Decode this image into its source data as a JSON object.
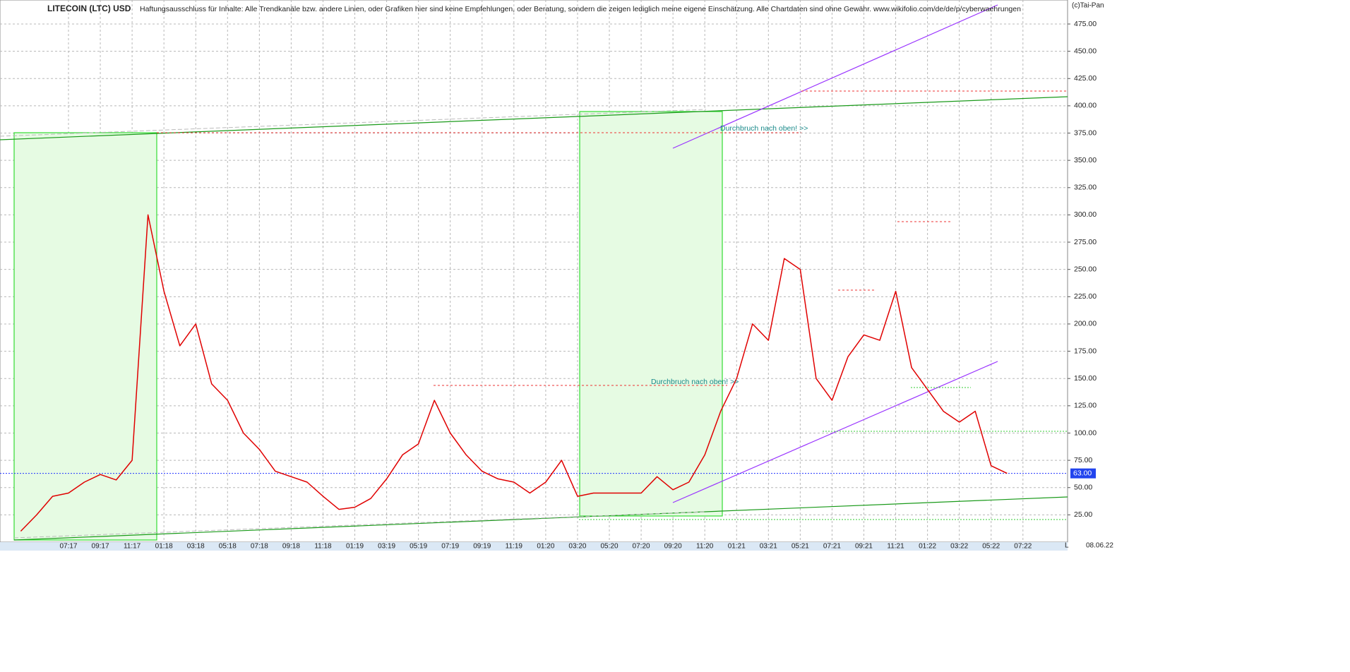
{
  "chart_data": {
    "type": "line",
    "title": "LITECOIN (LTC) USD",
    "subtitle": "Haftungsausschluss für Inhalte: Alle Trendkanäle bzw. andere Linien, oder Grafiken hier sind keine Empfehlungen, oder Beratung, sondern die zeigen lediglich meine eigene Einschätzung. Alle Chartdaten sind ohne Gewähr.  www.wikifolio.com/de/de/p/cyberwaehrungen",
    "copyright": "(c)Tai-Pan",
    "date_label": "08.06.22",
    "corner_label": "L",
    "annotations": [
      "Durchbruch nach oben! >>",
      "Durchbruch nach oben! >>"
    ],
    "current": {
      "value": 63,
      "label": "63.00"
    },
    "categories": [
      null,
      null,
      null,
      "07:17",
      null,
      "09:17",
      null,
      "11:17",
      null,
      "01:18",
      null,
      "03:18",
      null,
      "05:18",
      null,
      "07:18",
      null,
      "09:18",
      null,
      "11:18",
      null,
      "01:19",
      null,
      "03:19",
      null,
      "05:19",
      null,
      "07:19",
      null,
      "09:19",
      null,
      "11:19",
      null,
      "01:20",
      null,
      "03:20",
      null,
      "05:20",
      null,
      "07:20",
      null,
      "09:20",
      null,
      "11:20",
      null,
      "01:21",
      null,
      "03:21",
      null,
      "05:21",
      null,
      "07:21",
      null,
      "09:21",
      null,
      "11:21",
      null,
      "01:22",
      null,
      "03:22",
      null,
      "05:22",
      null,
      "07:22"
    ],
    "series": [
      {
        "color": "#e00000",
        "values": [
          10,
          25,
          42,
          45,
          55,
          62,
          57,
          75,
          300,
          230,
          180,
          200,
          145,
          130,
          100,
          85,
          65,
          60,
          55,
          42,
          30,
          32,
          40,
          58,
          80,
          90,
          130,
          100,
          80,
          65,
          58,
          55,
          45,
          55,
          75,
          42,
          45,
          45,
          45,
          45,
          60,
          48,
          55,
          80,
          120,
          150,
          200,
          185,
          260,
          250,
          150,
          130,
          170,
          190,
          185,
          230,
          160,
          140,
          120,
          110,
          120,
          70,
          63,
          null
        ]
      }
    ],
    "ylim": [
      0,
      497
    ],
    "yticks": [
      {
        "value": 25,
        "label": "25.00"
      },
      {
        "value": 50,
        "label": "50.00"
      },
      {
        "value": 75,
        "label": "75.00"
      },
      {
        "value": 100,
        "label": "100.00"
      },
      {
        "value": 125,
        "label": "125.00"
      },
      {
        "value": 150,
        "label": "150.00"
      },
      {
        "value": 175,
        "label": "175.00"
      },
      {
        "value": 200,
        "label": "200.00"
      },
      {
        "value": 225,
        "label": "225.00"
      },
      {
        "value": 250,
        "label": "250.00"
      },
      {
        "value": 275,
        "label": "275.00"
      },
      {
        "value": 300,
        "label": "300.00"
      },
      {
        "value": 325,
        "label": "325.00"
      },
      {
        "value": 350,
        "label": "350.00"
      },
      {
        "value": 375,
        "label": "375.00"
      },
      {
        "value": 400,
        "label": "400.00"
      },
      {
        "value": 425,
        "label": "425.00"
      },
      {
        "value": 450,
        "label": "450.00"
      },
      {
        "value": 475,
        "label": "475.00"
      }
    ],
    "grid": true
  }
}
